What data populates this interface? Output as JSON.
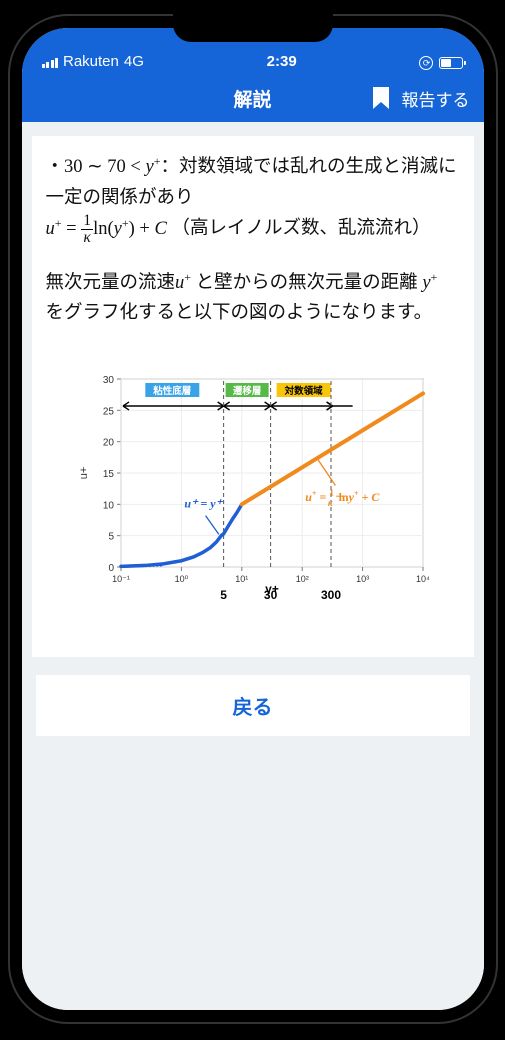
{
  "status": {
    "carrier": "Rakuten",
    "network": "4G",
    "time": "2:39",
    "battery_pct": 45
  },
  "header": {
    "title": "解説",
    "report_label": "報告する"
  },
  "body": {
    "range_prefix": "・",
    "range_low": "30",
    "tilde": "∼",
    "range_high": "70",
    "lt": "<",
    "var_y": "y",
    "sup_plus": "+",
    "colon_text": "：対数領域では乱れの生成と消滅に一定の関係があり",
    "eq_u": "u",
    "eq_eq": " = ",
    "frac_num": "1",
    "frac_den": "κ",
    "eq_ln": "ln(",
    "eq_close": ") + ",
    "eq_C": "C",
    "eq_note": "（高レイノルズ数、乱流流れ）",
    "para2_a": "無次元量の流速",
    "para2_b": " と壁からの無次元量の距離 ",
    "para2_c": " をグラフ化すると以下の図のようになります。"
  },
  "chart": {
    "type": "line-loglinear",
    "background_color": "#ffffff",
    "plot_border_color": "#7a7a7a",
    "grid_color": "#ededed",
    "ylabel": "u+",
    "ylabel_fontsize": 11,
    "xlabel": "y+",
    "xlabel_fontsize": 12,
    "y_ticks": [
      0,
      5,
      10,
      15,
      20,
      25,
      30
    ],
    "y_lim": [
      0,
      30
    ],
    "x_ticks_log": [
      -1,
      0,
      1,
      2,
      3,
      4
    ],
    "x_tick_labels": [
      "10⁻¹",
      "10⁰",
      "10¹",
      "10²",
      "10³",
      "10⁴"
    ],
    "x_marks": [
      {
        "value": 5,
        "label": "5",
        "log": 0.699
      },
      {
        "value": 30,
        "label": "30",
        "log": 1.477
      },
      {
        "value": 300,
        "label": "300",
        "log": 2.477
      }
    ],
    "regions": [
      {
        "label": "粘性底層",
        "bg": "#3aa3e8",
        "text": "#ffffff",
        "from_log": -1,
        "to_log": 0.699
      },
      {
        "label": "遷移層",
        "bg": "#57b947",
        "text": "#ffffff",
        "from_log": 0.699,
        "to_log": 1.477
      },
      {
        "label": "対数領域",
        "bg": "#f7c60a",
        "text": "#000000",
        "from_log": 1.477,
        "to_log": 4
      }
    ],
    "series_viscous": {
      "color": "#1f5fd6",
      "width": 3.5,
      "points_marker_count": 12,
      "eq_label": "u⁺ = y⁺",
      "eq_label_color": "#1f5fd6",
      "curve": [
        [
          -1.0,
          0.1
        ],
        [
          -0.6,
          0.25
        ],
        [
          -0.3,
          0.5
        ],
        [
          0.0,
          1.0
        ],
        [
          0.2,
          1.6
        ],
        [
          0.35,
          2.3
        ],
        [
          0.48,
          3.1
        ],
        [
          0.58,
          4.0
        ],
        [
          0.66,
          5.0
        ],
        [
          0.699,
          5.3
        ],
        [
          0.78,
          6.6
        ],
        [
          0.85,
          7.7
        ],
        [
          0.92,
          8.7
        ],
        [
          1.0,
          10.0
        ]
      ]
    },
    "series_log": {
      "color": "#f08a1d",
      "width": 4,
      "eq_label_color": "#f08a1d",
      "line": [
        [
          1.0,
          10.0
        ],
        [
          4.0,
          27.7
        ]
      ]
    },
    "arrow_color": "#000000",
    "dashed_color": "#555555"
  },
  "footer": {
    "back_label": "戻る"
  },
  "colors": {
    "primary": "#1565d8",
    "screen_bg": "#eef1f3"
  }
}
